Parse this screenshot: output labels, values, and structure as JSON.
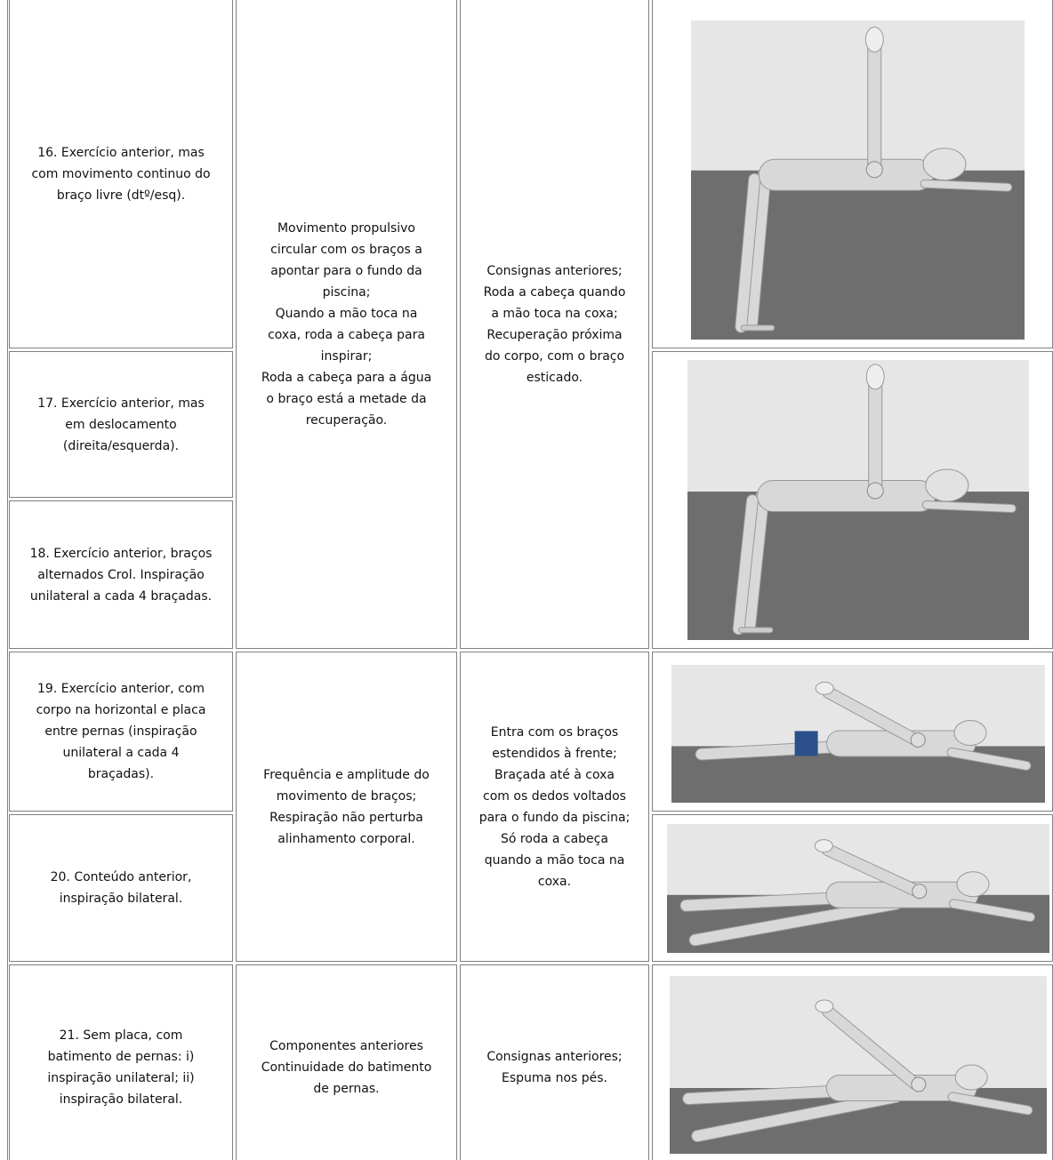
{
  "rows": [
    {
      "exercise": [
        "16. Exercício anterior, mas",
        "com movimento continuo do",
        "braço livre (dtº/esq)."
      ]
    },
    {
      "exercise": [
        "17. Exercício anterior, mas",
        "em deslocamento",
        "(direita/esquerda)."
      ]
    },
    {
      "exercise": [
        "18. Exercício anterior, braços",
        "alternados Crol. Inspiração",
        "unilateral a cada 4 braçadas."
      ]
    },
    {
      "exercise": [
        "19. Exercício anterior, com",
        "corpo na horizontal e placa",
        "entre pernas (inspiração",
        "unilateral a cada 4",
        "braçadas)."
      ]
    },
    {
      "exercise": [
        "20. Conteúdo anterior,",
        "inspiração bilateral."
      ]
    },
    {
      "exercise": [
        "21. Sem placa, com",
        "batimento de pernas: i)",
        "inspiração unilateral; ii)",
        "inspiração bilateral."
      ]
    }
  ],
  "groups": [
    {
      "objective": [
        "Movimento propulsivo",
        "circular com os braços a",
        "apontar para o fundo da",
        "piscina;",
        "Quando a mão toca na",
        "coxa, roda a cabeça para",
        "inspirar;",
        "Roda a cabeça para a água",
        "o braço está a metade da",
        "recuperação."
      ],
      "criteria": [
        "Consignas anteriores;",
        "Roda a cabeça quando",
        "a mão toca na coxa;",
        "Recuperação próxima",
        "do corpo, com o braço",
        "esticado."
      ]
    },
    {
      "objective": [
        "Frequência e amplitude do",
        "movimento de braços;",
        "Respiração não perturba",
        "alinhamento corporal."
      ],
      "criteria": [
        "Entra com os braços",
        "estendidos à frente;",
        "Braçada até à coxa",
        "com os dedos voltados",
        "para o fundo da piscina;",
        "Só roda a cabeça",
        "quando a mão toca na",
        "coxa."
      ]
    },
    {
      "objective": [
        "Componentes anteriores",
        "Continuidade do batimento",
        "de pernas."
      ],
      "criteria": [
        "Consignas anteriores;",
        "Espuma nos pés."
      ]
    }
  ]
}
